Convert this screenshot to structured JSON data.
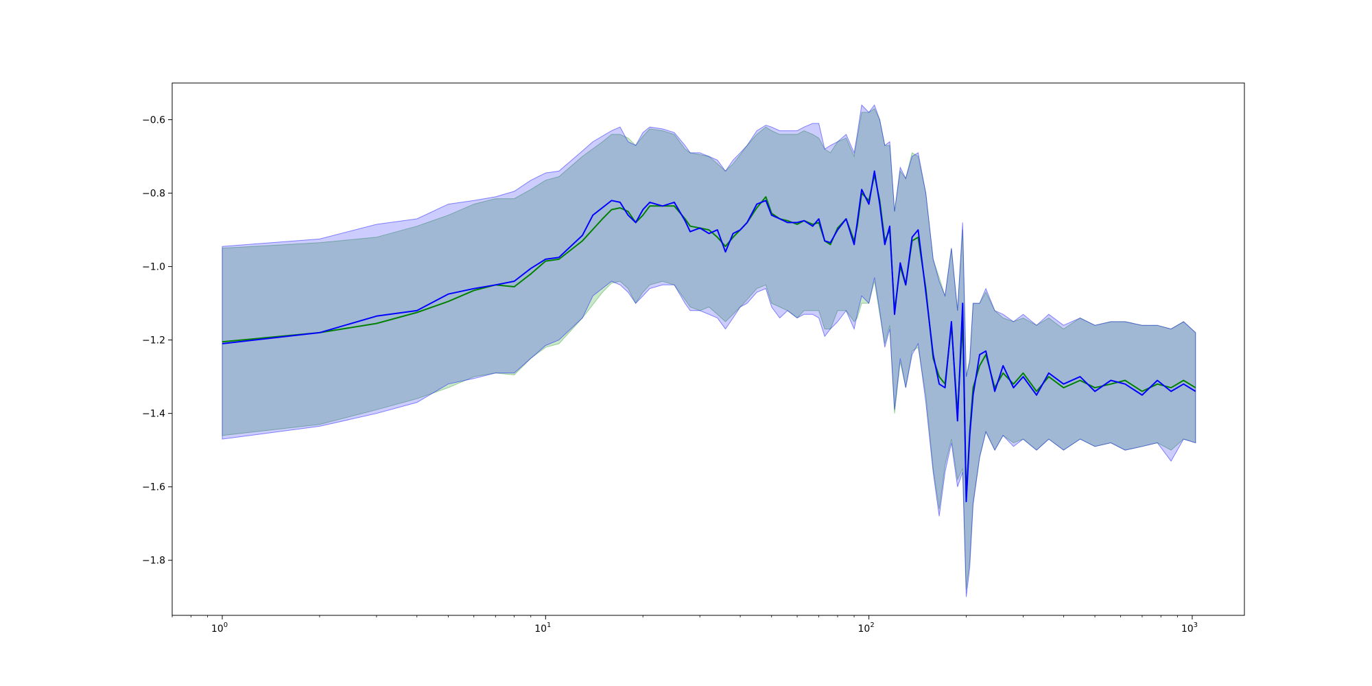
{
  "chart_data": {
    "type": "line",
    "title": "",
    "xlabel": "",
    "ylabel": "",
    "xscale": "log",
    "xlim": [
      0.7,
      1450
    ],
    "ylim": [
      -1.95,
      -0.5
    ],
    "grid": false,
    "legend": "none",
    "x_ticks": [
      {
        "base": "10",
        "exp": "0",
        "value": 1
      },
      {
        "base": "10",
        "exp": "1",
        "value": 10
      },
      {
        "base": "10",
        "exp": "2",
        "value": 100
      },
      {
        "base": "10",
        "exp": "3",
        "value": 1000
      }
    ],
    "y_ticks": [
      {
        "label": "−0.6",
        "value": -0.6
      },
      {
        "label": "−0.8",
        "value": -0.8
      },
      {
        "label": "−1.0",
        "value": -1.0
      },
      {
        "label": "−1.2",
        "value": -1.2
      },
      {
        "label": "−1.4",
        "value": -1.4
      },
      {
        "label": "−1.6",
        "value": -1.6
      },
      {
        "label": "−1.8",
        "value": -1.8
      }
    ],
    "series": [
      {
        "color": "#008000",
        "band_color": "#2ca02c",
        "band_opacity": 0.25,
        "points": [
          [
            1,
            -1.205,
            -1.46,
            -0.95
          ],
          [
            2,
            -1.18,
            -1.43,
            -0.935
          ],
          [
            3,
            -1.155,
            -1.39,
            -0.92
          ],
          [
            4,
            -1.125,
            -1.36,
            -0.89
          ],
          [
            5,
            -1.095,
            -1.33,
            -0.86
          ],
          [
            6,
            -1.065,
            -1.3,
            -0.83
          ],
          [
            7,
            -1.05,
            -1.29,
            -0.815
          ],
          [
            8,
            -1.055,
            -1.295,
            -0.815
          ],
          [
            9,
            -1.02,
            -1.25,
            -0.79
          ],
          [
            10,
            -0.985,
            -1.22,
            -0.765
          ],
          [
            11,
            -0.98,
            -1.21,
            -0.755
          ],
          [
            13,
            -0.93,
            -1.14,
            -0.7
          ],
          [
            15,
            -0.87,
            -1.07,
            -0.66
          ],
          [
            16,
            -0.845,
            -1.045,
            -0.64
          ],
          [
            17,
            -0.84,
            -1.04,
            -0.64
          ],
          [
            18,
            -0.85,
            -1.06,
            -0.65
          ],
          [
            19,
            -0.88,
            -1.1,
            -0.67
          ],
          [
            20,
            -0.86,
            -1.07,
            -0.645
          ],
          [
            21,
            -0.835,
            -1.05,
            -0.625
          ],
          [
            23,
            -0.835,
            -1.04,
            -0.63
          ],
          [
            25,
            -0.835,
            -1.05,
            -0.64
          ],
          [
            27,
            -0.87,
            -1.09,
            -0.68
          ],
          [
            28,
            -0.89,
            -1.11,
            -0.69
          ],
          [
            30,
            -0.895,
            -1.12,
            -0.695
          ],
          [
            32,
            -0.9,
            -1.11,
            -0.7
          ],
          [
            34,
            -0.92,
            -1.13,
            -0.72
          ],
          [
            36,
            -0.945,
            -1.15,
            -0.74
          ],
          [
            38,
            -0.92,
            -1.13,
            -0.72
          ],
          [
            40,
            -0.9,
            -1.11,
            -0.695
          ],
          [
            42,
            -0.88,
            -1.09,
            -0.67
          ],
          [
            45,
            -0.84,
            -1.06,
            -0.64
          ],
          [
            48,
            -0.81,
            -1.05,
            -0.62
          ],
          [
            50,
            -0.855,
            -1.1,
            -0.63
          ],
          [
            53,
            -0.87,
            -1.11,
            -0.64
          ],
          [
            56,
            -0.875,
            -1.12,
            -0.64
          ],
          [
            60,
            -0.885,
            -1.14,
            -0.64
          ],
          [
            63,
            -0.875,
            -1.12,
            -0.63
          ],
          [
            67,
            -0.885,
            -1.12,
            -0.64
          ],
          [
            70,
            -0.88,
            -1.12,
            -0.65
          ],
          [
            73,
            -0.93,
            -1.17,
            -0.68
          ],
          [
            76,
            -0.94,
            -1.17,
            -0.69
          ],
          [
            80,
            -0.895,
            -1.12,
            -0.66
          ],
          [
            85,
            -0.87,
            -1.12,
            -0.65
          ],
          [
            90,
            -0.93,
            -1.15,
            -0.7
          ],
          [
            92,
            -0.89,
            -1.14,
            -0.65
          ],
          [
            95,
            -0.8,
            -1.1,
            -0.58
          ],
          [
            100,
            -0.82,
            -1.1,
            -0.58
          ],
          [
            104,
            -0.75,
            -1.04,
            -0.57
          ],
          [
            108,
            -0.82,
            -1.13,
            -0.6
          ],
          [
            112,
            -0.93,
            -1.21,
            -0.67
          ],
          [
            116,
            -0.9,
            -1.16,
            -0.67
          ],
          [
            120,
            -1.12,
            -1.4,
            -0.85
          ],
          [
            125,
            -1.0,
            -1.26,
            -0.74
          ],
          [
            130,
            -1.05,
            -1.33,
            -0.76
          ],
          [
            136,
            -0.93,
            -1.23,
            -0.69
          ],
          [
            142,
            -0.92,
            -1.22,
            -0.7
          ],
          [
            150,
            -1.06,
            -1.35,
            -0.8
          ],
          [
            158,
            -1.25,
            -1.55,
            -0.98
          ],
          [
            165,
            -1.3,
            -1.66,
            -1.03
          ],
          [
            172,
            -1.32,
            -1.54,
            -1.08
          ],
          [
            180,
            -1.16,
            -1.47,
            -0.95
          ],
          [
            188,
            -1.4,
            -1.58,
            -1.12
          ],
          [
            195,
            -1.15,
            -1.55,
            -0.9
          ],
          [
            200,
            -1.63,
            -1.88,
            -1.3
          ],
          [
            205,
            -1.45,
            -1.8,
            -1.25
          ],
          [
            210,
            -1.33,
            -1.64,
            -1.1
          ],
          [
            220,
            -1.27,
            -1.52,
            -1.1
          ],
          [
            230,
            -1.24,
            -1.45,
            -1.07
          ],
          [
            245,
            -1.33,
            -1.5,
            -1.12
          ],
          [
            260,
            -1.29,
            -1.46,
            -1.14
          ],
          [
            280,
            -1.32,
            -1.48,
            -1.15
          ],
          [
            300,
            -1.29,
            -1.47,
            -1.14
          ],
          [
            330,
            -1.34,
            -1.5,
            -1.16
          ],
          [
            360,
            -1.3,
            -1.47,
            -1.14
          ],
          [
            400,
            -1.33,
            -1.5,
            -1.17
          ],
          [
            450,
            -1.31,
            -1.47,
            -1.14
          ],
          [
            500,
            -1.33,
            -1.49,
            -1.16
          ],
          [
            560,
            -1.32,
            -1.48,
            -1.15
          ],
          [
            620,
            -1.31,
            -1.5,
            -1.15
          ],
          [
            700,
            -1.34,
            -1.49,
            -1.16
          ],
          [
            780,
            -1.32,
            -1.48,
            -1.16
          ],
          [
            860,
            -1.33,
            -1.5,
            -1.17
          ],
          [
            940,
            -1.31,
            -1.47,
            -1.15
          ],
          [
            1024,
            -1.33,
            -1.48,
            -1.18
          ]
        ]
      },
      {
        "color": "#0000ff",
        "band_color": "#0000ff",
        "band_opacity": 0.2,
        "points": [
          [
            1,
            -1.21,
            -1.47,
            -0.945
          ],
          [
            2,
            -1.18,
            -1.435,
            -0.925
          ],
          [
            3,
            -1.135,
            -1.4,
            -0.885
          ],
          [
            4,
            -1.12,
            -1.37,
            -0.87
          ],
          [
            5,
            -1.075,
            -1.32,
            -0.83
          ],
          [
            6,
            -1.06,
            -1.305,
            -0.82
          ],
          [
            7,
            -1.05,
            -1.29,
            -0.81
          ],
          [
            8,
            -1.04,
            -1.29,
            -0.795
          ],
          [
            9,
            -1.005,
            -1.25,
            -0.765
          ],
          [
            10,
            -0.98,
            -1.215,
            -0.745
          ],
          [
            11,
            -0.975,
            -1.2,
            -0.74
          ],
          [
            13,
            -0.915,
            -1.14,
            -0.685
          ],
          [
            14,
            -0.86,
            -1.08,
            -0.66
          ],
          [
            16,
            -0.82,
            -1.04,
            -0.63
          ],
          [
            17,
            -0.825,
            -1.05,
            -0.62
          ],
          [
            18,
            -0.86,
            -1.07,
            -0.66
          ],
          [
            19,
            -0.88,
            -1.1,
            -0.67
          ],
          [
            20,
            -0.845,
            -1.08,
            -0.635
          ],
          [
            21,
            -0.825,
            -1.06,
            -0.62
          ],
          [
            23,
            -0.835,
            -1.05,
            -0.625
          ],
          [
            25,
            -0.825,
            -1.05,
            -0.635
          ],
          [
            27,
            -0.875,
            -1.1,
            -0.67
          ],
          [
            28,
            -0.905,
            -1.12,
            -0.69
          ],
          [
            30,
            -0.895,
            -1.12,
            -0.69
          ],
          [
            32,
            -0.91,
            -1.13,
            -0.7
          ],
          [
            34,
            -0.9,
            -1.14,
            -0.71
          ],
          [
            36,
            -0.96,
            -1.17,
            -0.74
          ],
          [
            38,
            -0.91,
            -1.14,
            -0.71
          ],
          [
            40,
            -0.9,
            -1.11,
            -0.69
          ],
          [
            42,
            -0.88,
            -1.1,
            -0.67
          ],
          [
            45,
            -0.83,
            -1.07,
            -0.63
          ],
          [
            48,
            -0.82,
            -1.06,
            -0.615
          ],
          [
            50,
            -0.86,
            -1.11,
            -0.62
          ],
          [
            53,
            -0.87,
            -1.14,
            -0.63
          ],
          [
            56,
            -0.88,
            -1.12,
            -0.63
          ],
          [
            60,
            -0.88,
            -1.14,
            -0.63
          ],
          [
            63,
            -0.875,
            -1.13,
            -0.62
          ],
          [
            67,
            -0.89,
            -1.13,
            -0.61
          ],
          [
            70,
            -0.87,
            -1.14,
            -0.61
          ],
          [
            73,
            -0.93,
            -1.19,
            -0.68
          ],
          [
            76,
            -0.935,
            -1.17,
            -0.67
          ],
          [
            80,
            -0.9,
            -1.15,
            -0.66
          ],
          [
            85,
            -0.87,
            -1.12,
            -0.64
          ],
          [
            90,
            -0.94,
            -1.17,
            -0.69
          ],
          [
            92,
            -0.88,
            -1.13,
            -0.64
          ],
          [
            95,
            -0.79,
            -1.08,
            -0.56
          ],
          [
            100,
            -0.83,
            -1.1,
            -0.58
          ],
          [
            104,
            -0.74,
            -1.03,
            -0.56
          ],
          [
            108,
            -0.83,
            -1.12,
            -0.6
          ],
          [
            112,
            -0.94,
            -1.22,
            -0.67
          ],
          [
            116,
            -0.89,
            -1.17,
            -0.66
          ],
          [
            120,
            -1.13,
            -1.39,
            -0.85
          ],
          [
            125,
            -0.99,
            -1.25,
            -0.73
          ],
          [
            130,
            -1.05,
            -1.33,
            -0.76
          ],
          [
            136,
            -0.92,
            -1.24,
            -0.7
          ],
          [
            142,
            -0.9,
            -1.21,
            -0.69
          ],
          [
            150,
            -1.07,
            -1.37,
            -0.8
          ],
          [
            158,
            -1.24,
            -1.56,
            -0.98
          ],
          [
            165,
            -1.32,
            -1.68,
            -1.04
          ],
          [
            172,
            -1.33,
            -1.56,
            -1.08
          ],
          [
            180,
            -1.15,
            -1.48,
            -0.95
          ],
          [
            188,
            -1.42,
            -1.6,
            -1.12
          ],
          [
            195,
            -1.1,
            -1.56,
            -0.88
          ],
          [
            200,
            -1.64,
            -1.9,
            -1.3
          ],
          [
            205,
            -1.46,
            -1.82,
            -1.26
          ],
          [
            210,
            -1.35,
            -1.65,
            -1.1
          ],
          [
            220,
            -1.24,
            -1.52,
            -1.1
          ],
          [
            230,
            -1.23,
            -1.45,
            -1.06
          ],
          [
            245,
            -1.34,
            -1.5,
            -1.12
          ],
          [
            260,
            -1.27,
            -1.46,
            -1.13
          ],
          [
            280,
            -1.33,
            -1.49,
            -1.15
          ],
          [
            300,
            -1.3,
            -1.47,
            -1.13
          ],
          [
            330,
            -1.35,
            -1.5,
            -1.16
          ],
          [
            360,
            -1.29,
            -1.47,
            -1.13
          ],
          [
            400,
            -1.32,
            -1.5,
            -1.16
          ],
          [
            450,
            -1.3,
            -1.47,
            -1.14
          ],
          [
            500,
            -1.34,
            -1.49,
            -1.16
          ],
          [
            560,
            -1.31,
            -1.48,
            -1.15
          ],
          [
            620,
            -1.32,
            -1.5,
            -1.15
          ],
          [
            700,
            -1.35,
            -1.49,
            -1.16
          ],
          [
            780,
            -1.31,
            -1.48,
            -1.16
          ],
          [
            860,
            -1.34,
            -1.53,
            -1.17
          ],
          [
            940,
            -1.32,
            -1.47,
            -1.15
          ],
          [
            1024,
            -1.34,
            -1.48,
            -1.18
          ]
        ]
      }
    ]
  }
}
